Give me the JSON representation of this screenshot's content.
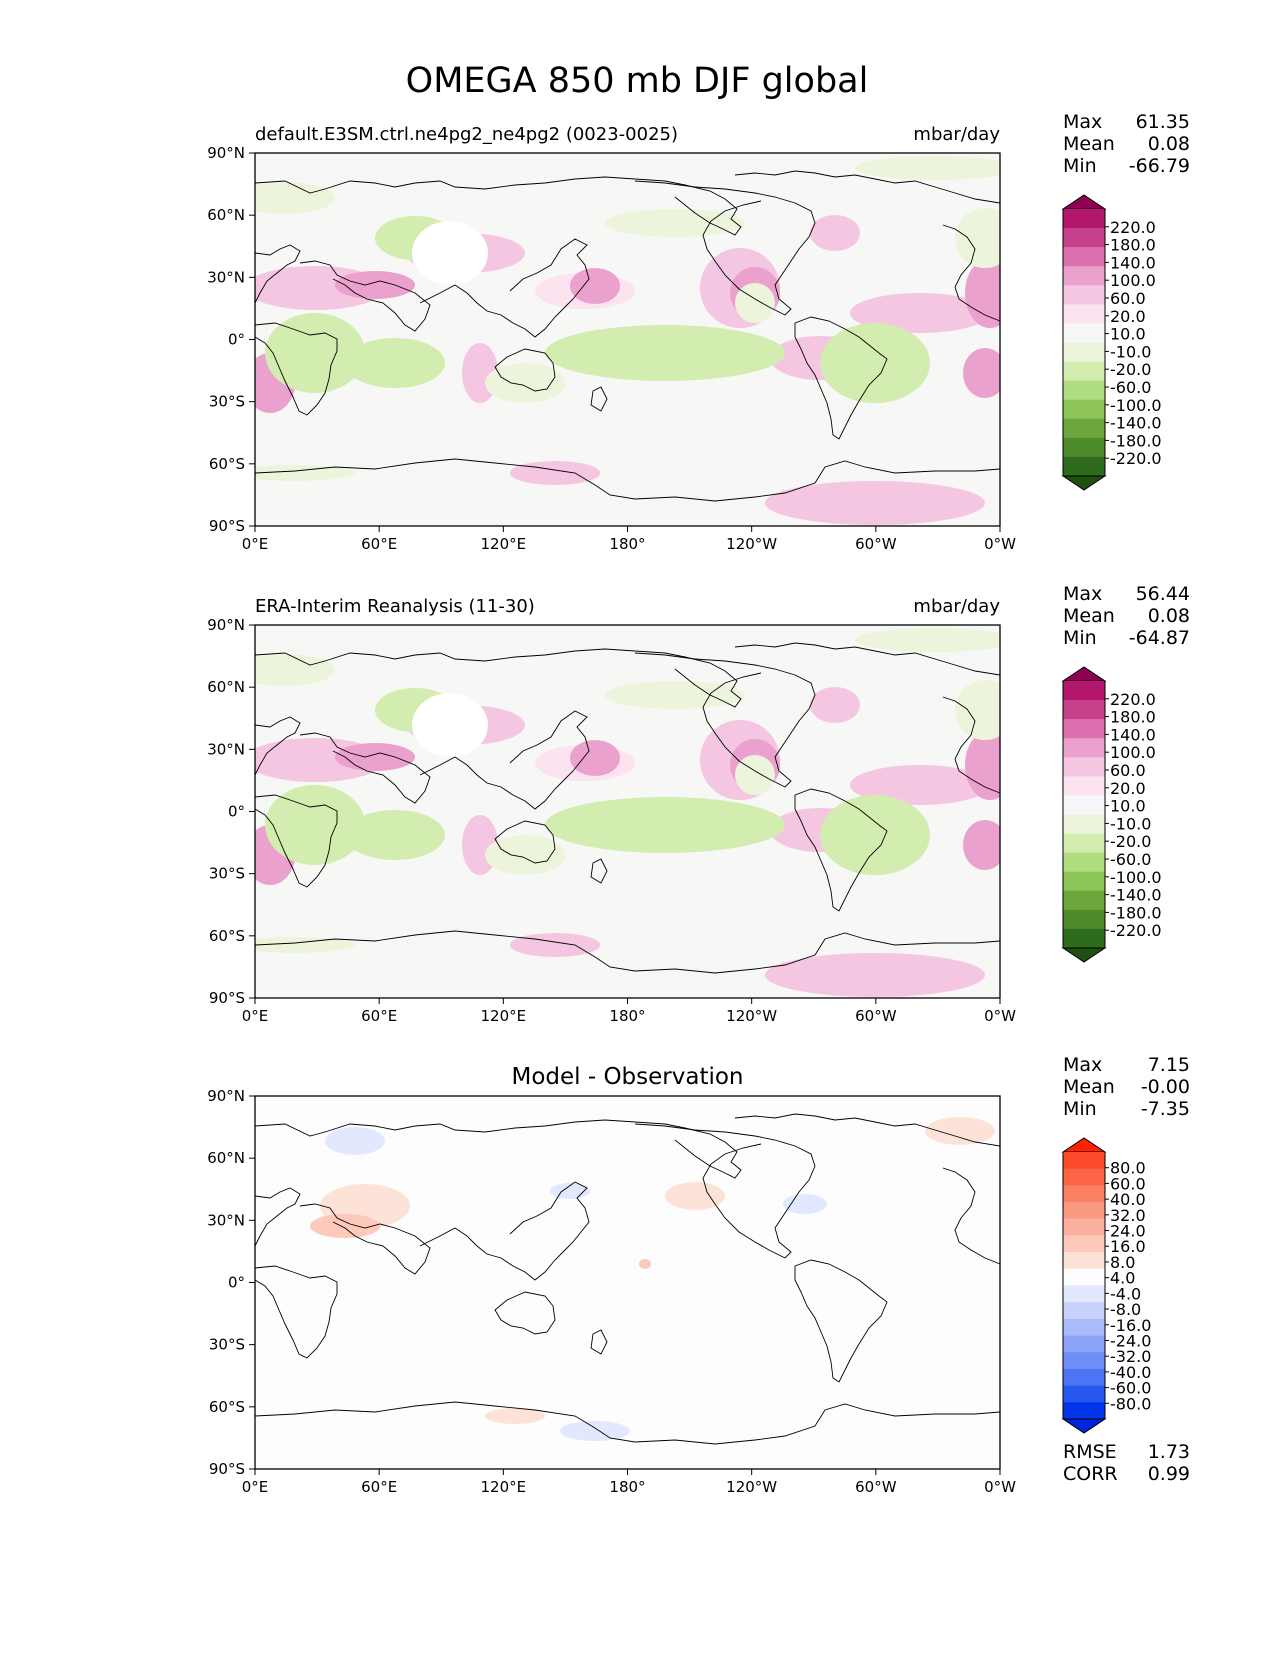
{
  "figure": {
    "title": "OMEGA 850 mb DJF global",
    "lat_ticks": [
      "90°N",
      "60°N",
      "30°N",
      "0°",
      "30°S",
      "60°S",
      "90°S"
    ],
    "lon_ticks": [
      "0°E",
      "60°E",
      "120°E",
      "180°",
      "120°W",
      "60°W",
      "0°W"
    ],
    "stat_labels": {
      "max": "Max",
      "mean": "Mean",
      "min": "Min",
      "rmse": "RMSE",
      "corr": "CORR"
    }
  },
  "panels": [
    {
      "name": "test",
      "left_title": "default.E3SM.ctrl.ne4pg2_ne4pg2 (0023-0025)",
      "center_title": "",
      "units": "mbar/day",
      "stats": {
        "max": "61.35",
        "mean": "0.08",
        "min": "-66.79"
      },
      "colorbar": "pg"
    },
    {
      "name": "reference",
      "left_title": "ERA-Interim Reanalysis (11-30)",
      "center_title": "",
      "units": "mbar/day",
      "stats": {
        "max": "56.44",
        "mean": "0.08",
        "min": "-64.87"
      },
      "colorbar": "pg"
    },
    {
      "name": "difference",
      "left_title": "",
      "center_title": "Model - Observation",
      "units": "",
      "stats": {
        "max": "7.15",
        "mean": "-0.00",
        "min": "-7.35"
      },
      "metrics": {
        "rmse": "1.73",
        "corr": "0.99"
      },
      "colorbar": "diff"
    }
  ],
  "colorbars": {
    "pg": {
      "labels": [
        "220.0",
        "180.0",
        "140.0",
        "100.0",
        "60.0",
        "20.0",
        "10.0",
        "-10.0",
        "-20.0",
        "-60.0",
        "-100.0",
        "-140.0",
        "-180.0",
        "-220.0"
      ],
      "colors": [
        "#8e0152",
        "#b3176d",
        "#c7418a",
        "#dc6fae",
        "#eba1cd",
        "#f5c6e1",
        "#fbe3f0",
        "#f7f7f7",
        "#ecf5dc",
        "#d3ecb0",
        "#b0dc80",
        "#8dc558",
        "#6ca63d",
        "#4c8a2a",
        "#2f6b1d",
        "#1f5012"
      ]
    },
    "diff": {
      "labels": [
        "80.0",
        "60.0",
        "40.0",
        "32.0",
        "24.0",
        "16.0",
        "8.0",
        "4.0",
        "-4.0",
        "-8.0",
        "-16.0",
        "-24.0",
        "-32.0",
        "-40.0",
        "-60.0",
        "-80.0"
      ],
      "colors": [
        "#ff2200",
        "#fe4a2a",
        "#fc6548",
        "#fb8063",
        "#fa9a80",
        "#fbb19d",
        "#fcc9ba",
        "#fde2d8",
        "#fefefe",
        "#e2e8fd",
        "#c6d2fc",
        "#a9bbfa",
        "#8ca5f8",
        "#6f8ef6",
        "#4c74f3",
        "#2558ef",
        "#0035ea",
        "#0026dd"
      ]
    }
  },
  "map_colors": {
    "background": "#f7f7f5",
    "land_outline": "#000000",
    "diff_background": "#fdfdfd"
  }
}
